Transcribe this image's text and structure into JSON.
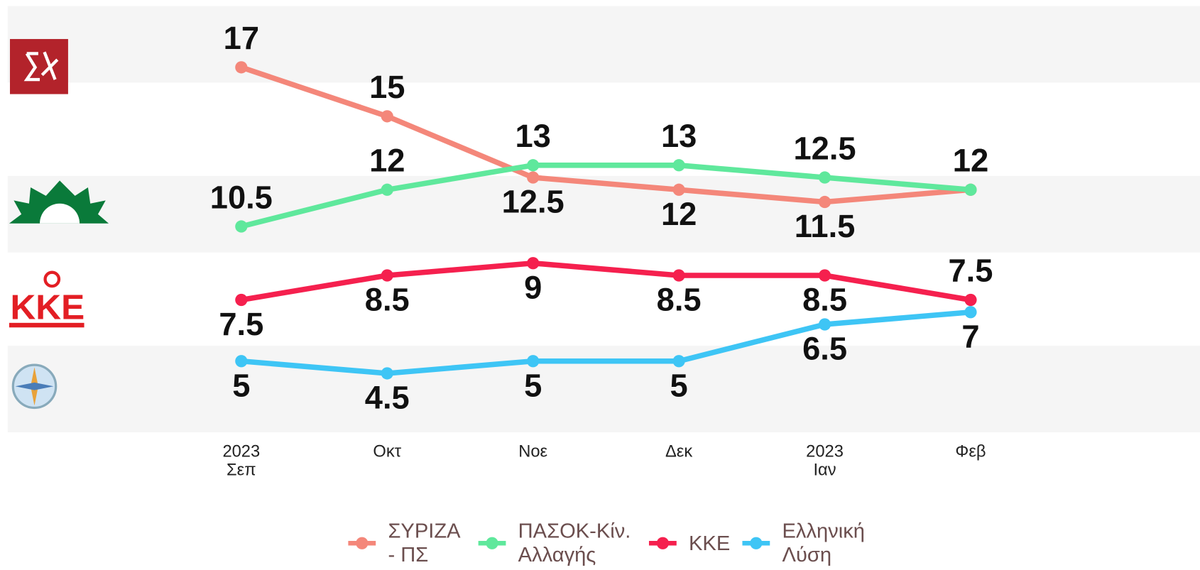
{
  "chart_data": {
    "type": "line",
    "categories": [
      "2023\nΣεπ",
      "Οκτ",
      "Νοε",
      "Δεκ",
      "2023\nΙαν",
      "Φεβ"
    ],
    "series": [
      {
        "name": "ΣΥΡΙΖΑ\n- ΠΣ",
        "color": "#f4877a",
        "values": [
          17,
          15,
          12.5,
          12,
          11.5,
          12
        ]
      },
      {
        "name": "ΠΑΣΟΚ-Κίν.\nΑλλαγής",
        "color": "#5fe89c",
        "values": [
          10.5,
          12,
          13,
          13,
          12.5,
          12
        ]
      },
      {
        "name": "ΚΚΕ",
        "color": "#f5204e",
        "values": [
          7.5,
          8.5,
          9,
          8.5,
          8.5,
          7.5
        ]
      },
      {
        "name": "Ελληνική\nΛύση",
        "color": "#3ec5f5",
        "values": [
          5,
          4.5,
          5,
          5,
          6.5,
          7
        ]
      }
    ],
    "ylim": [
      4,
      18
    ]
  }
}
